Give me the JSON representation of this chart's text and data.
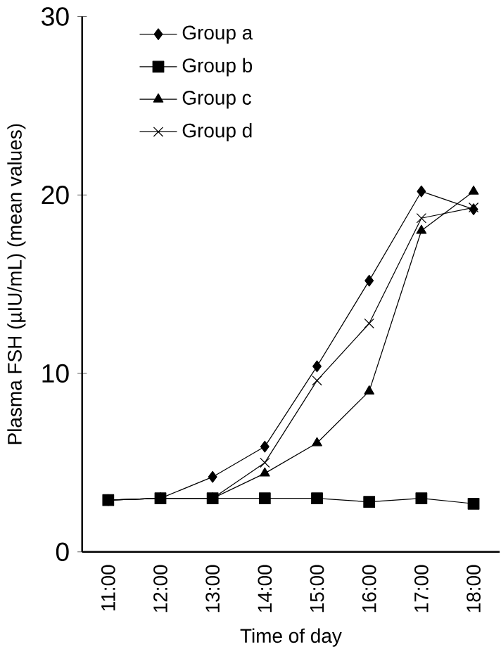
{
  "chart_data": {
    "type": "line",
    "xlabel": "Time of day",
    "ylabel": "Plasma FSH (µIU/mL) (mean values)",
    "categories": [
      "11:00",
      "12:00",
      "13:00",
      "14:00",
      "15:00",
      "16:00",
      "17:00",
      "18:00"
    ],
    "series": [
      {
        "name": "Group a",
        "color": "#000000",
        "marker": "diamond",
        "values": [
          2.9,
          3.0,
          4.2,
          5.9,
          10.4,
          15.2,
          20.2,
          19.2
        ]
      },
      {
        "name": "Group b",
        "color": "#000000",
        "marker": "square",
        "values": [
          2.9,
          3.0,
          3.0,
          3.0,
          3.0,
          2.8,
          3.0,
          2.7
        ]
      },
      {
        "name": "Group c",
        "color": "#000000",
        "marker": "triangle",
        "values": [
          2.9,
          3.0,
          3.0,
          4.4,
          6.1,
          9.0,
          18.0,
          20.2
        ]
      },
      {
        "name": "Group d",
        "color": "#000000",
        "marker": "cross",
        "values": [
          2.9,
          3.0,
          3.0,
          5.0,
          9.6,
          12.8,
          18.7,
          19.3
        ]
      }
    ],
    "ylim": [
      0,
      30
    ],
    "yticks": [
      0,
      10,
      20,
      30
    ],
    "grid": false,
    "legend": "top left",
    "line_style": "solid"
  }
}
